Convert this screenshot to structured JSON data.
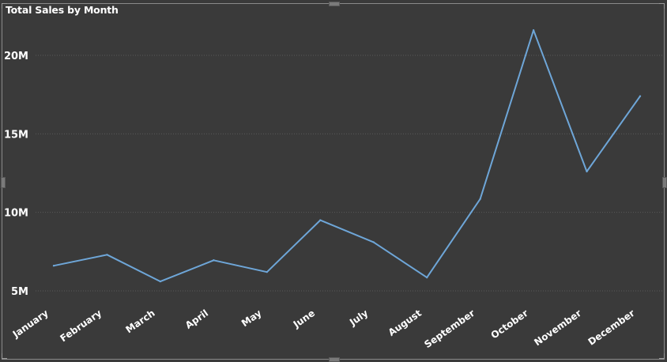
{
  "chart_data": {
    "type": "line",
    "title": "Total Sales by Month",
    "xlabel": "",
    "ylabel": "",
    "categories": [
      "January",
      "February",
      "March",
      "April",
      "May",
      "June",
      "July",
      "August",
      "September",
      "October",
      "November",
      "December"
    ],
    "series": [
      {
        "values": [
          6.6,
          7.3,
          5.6,
          6.95,
          6.2,
          9.5,
          8.1,
          5.85,
          10.85,
          21.6,
          12.6,
          17.4
        ]
      }
    ],
    "y_unit_suffix": "M",
    "ylim": [
      5,
      22
    ],
    "yticks": [
      5,
      10,
      15,
      20
    ],
    "ytick_labels": [
      "5M",
      "10M",
      "15M",
      "20M"
    ],
    "grid": true,
    "line_color": "#6ea6d8",
    "grid_color": "#595959",
    "background_color": "#3a3a3a"
  }
}
